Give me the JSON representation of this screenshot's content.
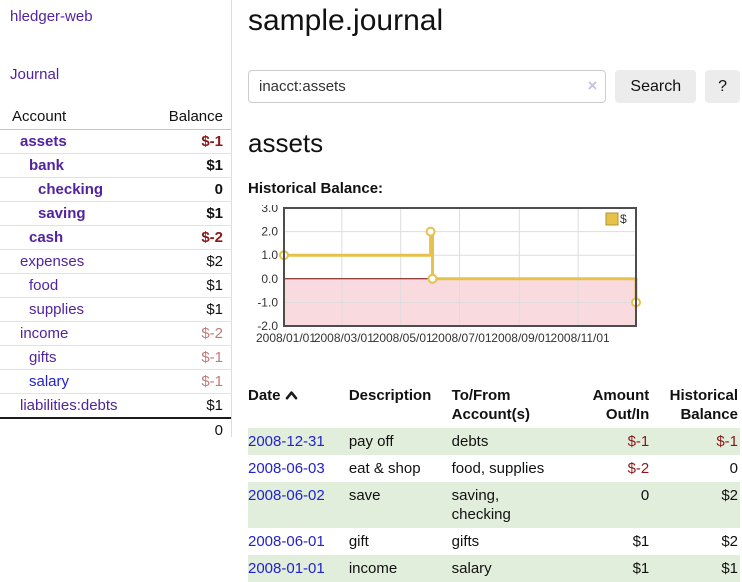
{
  "sidebar": {
    "app_title": "hledger-web",
    "nav": [
      {
        "label": "Journal"
      }
    ],
    "accounts_table": {
      "headers": {
        "account": "Account",
        "balance": "Balance"
      },
      "rows": [
        {
          "name": "assets",
          "depth": 1,
          "bold": true,
          "balance": "$-1",
          "blue": false
        },
        {
          "name": "bank",
          "depth": 2,
          "bold": true,
          "balance": "$1",
          "blue": false
        },
        {
          "name": "checking",
          "depth": 3,
          "bold": true,
          "balance": "0",
          "blue": false
        },
        {
          "name": "saving",
          "depth": 3,
          "bold": true,
          "balance": "$1",
          "blue": false
        },
        {
          "name": "cash",
          "depth": 2,
          "bold": true,
          "balance": "$-2",
          "blue": false
        },
        {
          "name": "expenses",
          "depth": 1,
          "bold": false,
          "balance": "$2",
          "blue": false
        },
        {
          "name": "food",
          "depth": 2,
          "bold": false,
          "balance": "$1",
          "blue": false
        },
        {
          "name": "supplies",
          "depth": 2,
          "bold": false,
          "balance": "$1",
          "blue": false
        },
        {
          "name": "income",
          "depth": 1,
          "bold": false,
          "balance": "$-2",
          "blue": false
        },
        {
          "name": "gifts",
          "depth": 2,
          "bold": false,
          "balance": "$-1",
          "blue": false
        },
        {
          "name": "salary",
          "depth": 2,
          "bold": false,
          "balance": "$-1",
          "blue": true
        },
        {
          "name": "liabilities:debts",
          "depth": 1,
          "bold": false,
          "balance": "$1",
          "blue": false
        }
      ],
      "total": "0"
    }
  },
  "main": {
    "title": "sample.journal",
    "search": {
      "value": "inacct:assets",
      "clear_icon": "×",
      "button_label": "Search",
      "help_label": "?"
    },
    "account_heading": "assets",
    "chart_label": "Historical Balance:",
    "register": {
      "headers": {
        "date": "Date",
        "description": "Description",
        "tofrom_line1": "To/From",
        "tofrom_line2": "Account(s)",
        "amount_line1": "Amount",
        "amount_line2": "Out/In",
        "balance_line1": "Historical",
        "balance_line2": "Balance"
      },
      "rows": [
        {
          "date": "2008-12-31",
          "description": "pay off",
          "tofrom": "debts",
          "amount": "$-1",
          "balance": "$-1"
        },
        {
          "date": "2008-06-03",
          "description": "eat & shop",
          "tofrom": "food, supplies",
          "amount": "$-2",
          "balance": "0"
        },
        {
          "date": "2008-06-02",
          "description": "save",
          "tofrom": "saving, checking",
          "amount": "0",
          "balance": "$2"
        },
        {
          "date": "2008-06-01",
          "description": "gift",
          "tofrom": "gifts",
          "amount": "$1",
          "balance": "$2"
        },
        {
          "date": "2008-01-01",
          "description": "income",
          "tofrom": "salary",
          "amount": "$1",
          "balance": "$1"
        }
      ]
    }
  },
  "chart_data": {
    "type": "line",
    "title": "Historical Balance",
    "step": true,
    "series": [
      {
        "name": "$",
        "color": "#e7c24b",
        "points": [
          {
            "date": "2008-01-01",
            "day": 0,
            "value": 1.0
          },
          {
            "date": "2008-06-01",
            "day": 152,
            "value": 2.0
          },
          {
            "date": "2008-06-03",
            "day": 154,
            "value": 0.0
          },
          {
            "date": "2008-12-31",
            "day": 365,
            "value": -1.0
          }
        ]
      }
    ],
    "x_ticks": [
      {
        "day": 0,
        "label": "2008/01/01"
      },
      {
        "day": 60,
        "label": "2008/03/01"
      },
      {
        "day": 121,
        "label": "2008/05/01"
      },
      {
        "day": 182,
        "label": "2008/07/01"
      },
      {
        "day": 244,
        "label": "2008/09/01"
      },
      {
        "day": 305,
        "label": "2008/11/01"
      }
    ],
    "x_range_days": 365,
    "y_ticks": [
      3.0,
      2.0,
      1.0,
      0.0,
      -1.0,
      -2.0
    ],
    "ylim": [
      -2.0,
      3.0
    ],
    "legend": [
      "$"
    ],
    "grid": true,
    "legend_position": "top-right",
    "colors": {
      "line": "#e7c24b",
      "marker_fill": "#ffffff",
      "negative_region": "#f9dbdf",
      "zero_line": "#7a0000",
      "plot_border": "#4d4d4d",
      "gridline": "#dddddd"
    }
  }
}
